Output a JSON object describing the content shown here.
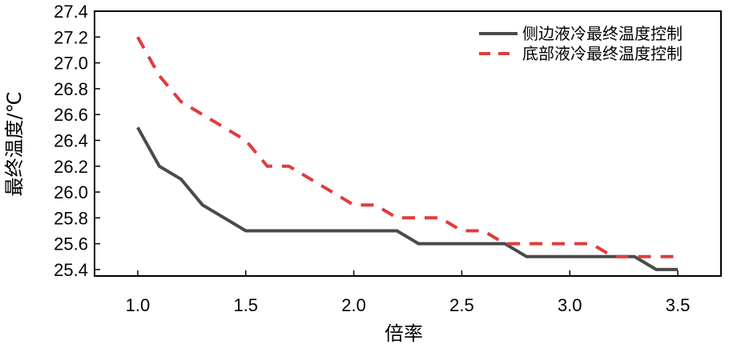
{
  "chart_data": {
    "type": "line",
    "xlabel": "倍率",
    "ylabel": "最终温度/℃",
    "xlim": [
      0.8,
      3.7
    ],
    "ylim": [
      25.35,
      27.4
    ],
    "x_ticks": [
      "1.0",
      "1.5",
      "2.0",
      "2.5",
      "3.0",
      "3.5"
    ],
    "y_ticks": [
      "25.4",
      "25.6",
      "25.8",
      "26.0",
      "26.2",
      "26.4",
      "26.6",
      "26.8",
      "27.0",
      "27.2",
      "27.4"
    ],
    "grid": false,
    "legend_position": "top-right",
    "series": [
      {
        "name": "侧边液冷最终温度控制",
        "color": "#4a4a4a",
        "style": "solid",
        "points": [
          [
            1.0,
            26.5
          ],
          [
            1.1,
            26.2
          ],
          [
            1.2,
            26.1
          ],
          [
            1.3,
            25.9
          ],
          [
            1.4,
            25.8
          ],
          [
            1.5,
            25.7
          ],
          [
            1.6,
            25.7
          ],
          [
            1.7,
            25.7
          ],
          [
            1.8,
            25.7
          ],
          [
            1.9,
            25.7
          ],
          [
            2.0,
            25.7
          ],
          [
            2.1,
            25.7
          ],
          [
            2.2,
            25.7
          ],
          [
            2.3,
            25.6
          ],
          [
            2.4,
            25.6
          ],
          [
            2.5,
            25.6
          ],
          [
            2.6,
            25.6
          ],
          [
            2.7,
            25.6
          ],
          [
            2.8,
            25.5
          ],
          [
            2.9,
            25.5
          ],
          [
            3.0,
            25.5
          ],
          [
            3.1,
            25.5
          ],
          [
            3.2,
            25.5
          ],
          [
            3.3,
            25.5
          ],
          [
            3.4,
            25.4
          ],
          [
            3.5,
            25.4
          ]
        ]
      },
      {
        "name": "底部液冷最终温度控制",
        "color": "#e03c3c",
        "style": "dashed",
        "points": [
          [
            1.0,
            27.2
          ],
          [
            1.1,
            26.9
          ],
          [
            1.2,
            26.7
          ],
          [
            1.3,
            26.6
          ],
          [
            1.4,
            26.5
          ],
          [
            1.5,
            26.4
          ],
          [
            1.6,
            26.2
          ],
          [
            1.7,
            26.2
          ],
          [
            1.8,
            26.1
          ],
          [
            1.9,
            26.0
          ],
          [
            2.0,
            25.9
          ],
          [
            2.1,
            25.9
          ],
          [
            2.2,
            25.8
          ],
          [
            2.3,
            25.8
          ],
          [
            2.4,
            25.8
          ],
          [
            2.5,
            25.7
          ],
          [
            2.6,
            25.7
          ],
          [
            2.7,
            25.6
          ],
          [
            2.8,
            25.6
          ],
          [
            2.9,
            25.6
          ],
          [
            3.0,
            25.6
          ],
          [
            3.1,
            25.6
          ],
          [
            3.2,
            25.5
          ],
          [
            3.3,
            25.5
          ],
          [
            3.4,
            25.5
          ],
          [
            3.5,
            25.5
          ]
        ]
      }
    ]
  }
}
